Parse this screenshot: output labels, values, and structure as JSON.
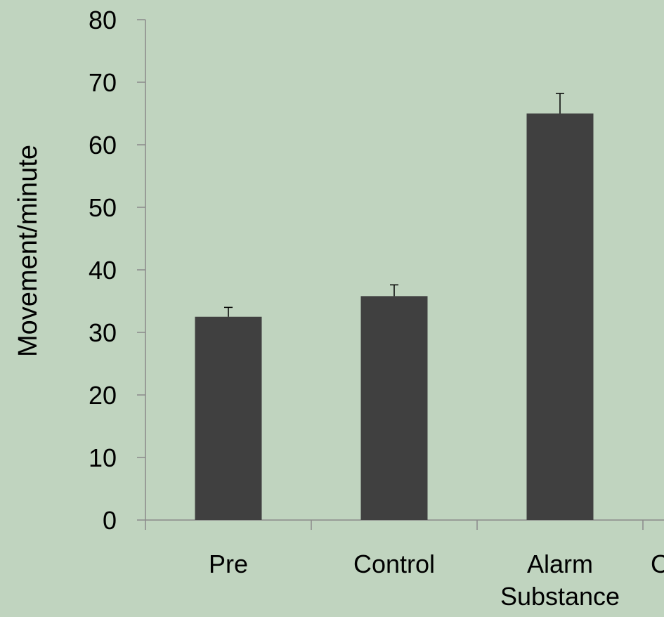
{
  "chart_data": {
    "type": "bar",
    "title": "",
    "xlabel": "",
    "ylabel": "Movement/minute",
    "ylim": [
      0,
      80
    ],
    "yticks": [
      0,
      10,
      20,
      30,
      40,
      50,
      60,
      70,
      80
    ],
    "grid": false,
    "legend": "none",
    "categories": [
      {
        "lines": [
          "Pre"
        ]
      },
      {
        "lines": [
          "Control"
        ]
      },
      {
        "lines": [
          "Alarm",
          "Substance"
        ]
      },
      {
        "lines": [
          "C"
        ]
      }
    ],
    "series": [
      {
        "values": [
          32.5,
          35.8,
          65.0,
          null
        ],
        "errors": [
          1.5,
          1.8,
          3.2,
          null
        ],
        "color": "#404040"
      }
    ]
  }
}
